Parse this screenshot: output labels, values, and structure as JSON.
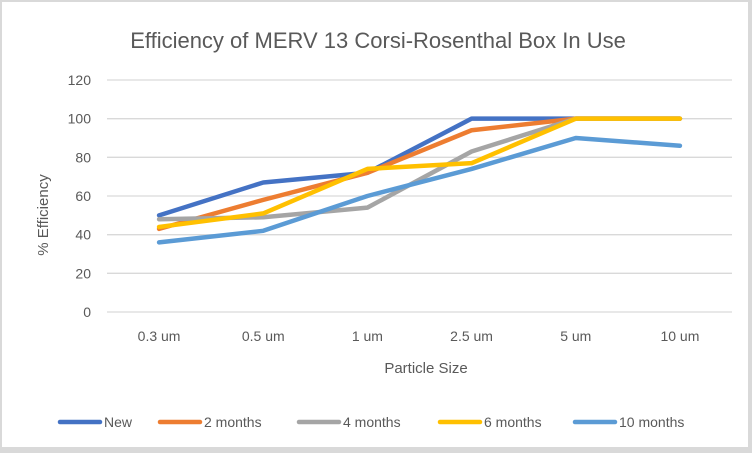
{
  "chart_data": {
    "type": "line",
    "title": "Efficiency of MERV 13 Corsi-Rosenthal  Box In Use",
    "xlabel": "Particle Size",
    "ylabel": "% Efficiency",
    "categories": [
      "0.3 um",
      "0.5 um",
      "1 um",
      "2.5 um",
      "5 um",
      "10 um"
    ],
    "ylim": [
      0,
      120
    ],
    "yticks": [
      0,
      20,
      40,
      60,
      80,
      100,
      120
    ],
    "grid": true,
    "legend_position": "bottom",
    "series": [
      {
        "name": "New",
        "color": "#4472c4",
        "values": [
          50,
          67,
          72,
          100,
          100,
          100
        ]
      },
      {
        "name": "2 months",
        "color": "#ed7d31",
        "values": [
          43,
          58,
          72,
          94,
          100,
          100
        ]
      },
      {
        "name": "4 months",
        "color": "#a5a5a5",
        "values": [
          48,
          49,
          54,
          83,
          100,
          100
        ]
      },
      {
        "name": "6 months",
        "color": "#ffc000",
        "values": [
          44,
          51,
          74,
          77,
          100,
          100
        ]
      },
      {
        "name": "10 months",
        "color": "#5b9bd5",
        "values": [
          36,
          42,
          60,
          74,
          90,
          86
        ]
      }
    ]
  }
}
